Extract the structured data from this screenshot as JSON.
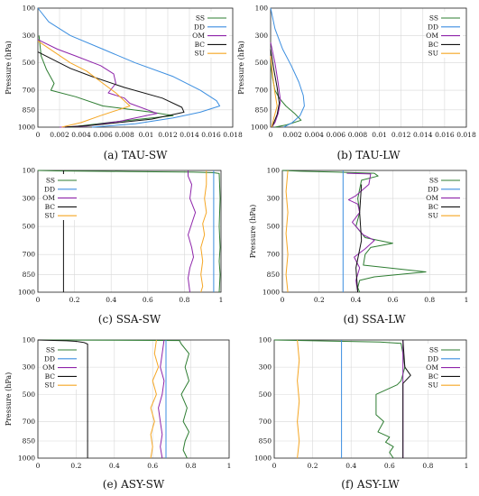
{
  "colors": {
    "SS": "#2e7d32",
    "DD": "#3b8ee0",
    "OM": "#8e24aa",
    "BC": "#111111",
    "SU": "#f5a623"
  },
  "legend_names": [
    "SS",
    "DD",
    "OM",
    "BC",
    "SU"
  ],
  "ylabel": "Pressure (hPa)",
  "y_ticks": [
    "100",
    "300",
    "500",
    "700",
    "850",
    "1000"
  ],
  "chart_data": [
    {
      "type": "line",
      "caption": "(a) TAU-SW",
      "ylabel": "Pressure (hPa)",
      "xlim": [
        0,
        0.018
      ],
      "x_ticks": [
        "0",
        "0.002",
        "0.004",
        "0.006",
        "0.008",
        "0.01",
        "0.012",
        "0.014",
        "0.016",
        "0.018"
      ],
      "y_ticks": [
        "100",
        "300",
        "500",
        "700",
        "850",
        "1000"
      ],
      "legend": "top-right",
      "series": [
        {
          "name": "SS",
          "x": [
            0.0001,
            0.0003,
            0.0008,
            0.0015,
            0.0012,
            0.0035,
            0.006,
            0.0105,
            0.0125,
            0.0065,
            0.003
          ],
          "y": [
            300,
            450,
            550,
            650,
            700,
            750,
            820,
            870,
            900,
            960,
            1000
          ]
        },
        {
          "name": "DD",
          "x": [
            0.0,
            0.001,
            0.003,
            0.006,
            0.009,
            0.0125,
            0.015,
            0.0165,
            0.0168,
            0.015,
            0.0125,
            0.009,
            0.005
          ],
          "y": [
            100,
            200,
            300,
            400,
            500,
            600,
            700,
            780,
            820,
            870,
            920,
            970,
            1000
          ]
        },
        {
          "name": "OM",
          "x": [
            0.0,
            0.0018,
            0.0035,
            0.0058,
            0.007,
            0.0072,
            0.0065,
            0.008,
            0.0085,
            0.011,
            0.0075,
            0.0045,
            0.002
          ],
          "y": [
            330,
            400,
            450,
            520,
            580,
            650,
            720,
            760,
            800,
            880,
            950,
            990,
            1000
          ]
        },
        {
          "name": "BC",
          "x": [
            0.0,
            0.0015,
            0.003,
            0.005,
            0.008,
            0.0115,
            0.0133,
            0.0135,
            0.0105,
            0.0055,
            0.0025
          ],
          "y": [
            420,
            480,
            540,
            600,
            680,
            760,
            830,
            870,
            930,
            980,
            1000
          ]
        },
        {
          "name": "SU",
          "x": [
            0.0,
            0.0015,
            0.003,
            0.0045,
            0.0055,
            0.0072,
            0.0085,
            0.0058,
            0.004,
            0.0022
          ],
          "y": [
            340,
            420,
            500,
            560,
            620,
            720,
            820,
            900,
            960,
            1000
          ]
        }
      ]
    },
    {
      "type": "line",
      "caption": "(b) TAU-LW",
      "ylabel": "Pressure (hPa)",
      "xlim": [
        0,
        0.018
      ],
      "x_ticks": [
        "0",
        "0.002",
        "0.004",
        "0.006",
        "0.008",
        "0.01",
        "0.012",
        "0.014",
        "0.016",
        "0.018"
      ],
      "y_ticks": [
        "100",
        "300",
        "500",
        "700",
        "850",
        "1000"
      ],
      "legend": "top-right",
      "series": [
        {
          "name": "SS",
          "x": [
            0.0,
            0.0002,
            0.0004,
            0.0008,
            0.0014,
            0.0022,
            0.0028,
            0.0015,
            0.0004
          ],
          "y": [
            500,
            620,
            700,
            760,
            820,
            880,
            940,
            980,
            1000
          ]
        },
        {
          "name": "DD",
          "x": [
            0.0,
            0.0004,
            0.0011,
            0.0019,
            0.0026,
            0.003,
            0.0031,
            0.0027,
            0.002,
            0.0012
          ],
          "y": [
            100,
            250,
            400,
            520,
            640,
            740,
            820,
            900,
            960,
            1000
          ]
        },
        {
          "name": "OM",
          "x": [
            0.0,
            0.0004,
            0.0007,
            0.0009,
            0.0007,
            0.0004,
            0.0001
          ],
          "y": [
            350,
            500,
            650,
            780,
            880,
            960,
            1000
          ]
        },
        {
          "name": "BC",
          "x": [
            0.0,
            0.0003,
            0.0006,
            0.0008,
            0.0006,
            0.0003,
            0.0001
          ],
          "y": [
            400,
            550,
            680,
            800,
            890,
            960,
            1000
          ]
        },
        {
          "name": "SU",
          "x": [
            0.0,
            0.0002,
            0.0004,
            0.0006,
            0.0003,
            0.0001
          ],
          "y": [
            450,
            600,
            720,
            820,
            920,
            1000
          ]
        }
      ]
    },
    {
      "type": "line",
      "caption": "(c) SSA-SW",
      "ylabel": "",
      "xlim": [
        0,
        1
      ],
      "x_ticks": [
        "0",
        "0.2",
        "0.4",
        "0.6",
        "0.8",
        "1"
      ],
      "y_ticks": [
        "100",
        "300",
        "500",
        "700",
        "850",
        "1000"
      ],
      "legend": "top-left",
      "series": [
        {
          "name": "SS",
          "x": [
            0.0,
            0.1,
            0.5,
            0.85,
            0.96,
            0.99,
            0.995,
            0.99,
            0.995,
            0.99,
            0.995,
            0.99
          ],
          "y": [
            100,
            103,
            108,
            112,
            116,
            122,
            300,
            500,
            650,
            750,
            850,
            1000
          ]
        },
        {
          "name": "DD",
          "x": [
            0.96,
            0.96
          ],
          "y": [
            100,
            1000
          ]
        },
        {
          "name": "OM",
          "x": [
            0.82,
            0.82,
            0.84,
            0.83,
            0.86,
            0.84,
            0.82,
            0.84,
            0.85,
            0.83,
            0.82,
            0.83
          ],
          "y": [
            100,
            140,
            200,
            300,
            400,
            480,
            560,
            650,
            720,
            800,
            880,
            1000
          ]
        },
        {
          "name": "BC",
          "x": [
            0.14,
            0.14
          ],
          "y": [
            100,
            1000
          ]
        },
        {
          "name": "SU",
          "x": [
            0.92,
            0.92,
            0.91,
            0.92,
            0.9,
            0.91,
            0.89,
            0.9,
            0.89,
            0.9,
            0.89
          ],
          "y": [
            100,
            200,
            300,
            400,
            480,
            560,
            650,
            750,
            850,
            950,
            1000
          ]
        }
      ]
    },
    {
      "type": "line",
      "caption": "(d) SSA-LW",
      "ylabel": "Pressure (hPa)",
      "xlim": [
        0,
        1
      ],
      "x_ticks": [
        "0",
        "0.2",
        "0.4",
        "0.6",
        "0.8",
        "1"
      ],
      "y_ticks": [
        "100",
        "300",
        "500",
        "700",
        "850",
        "1000"
      ],
      "legend": "top-right",
      "series": [
        {
          "name": "SS",
          "x": [
            0.0,
            0.1,
            0.3,
            0.5,
            0.52,
            0.43,
            0.41,
            0.42,
            0.4,
            0.45,
            0.6,
            0.48,
            0.45,
            0.44,
            0.78,
            0.5,
            0.42,
            0.41,
            0.42
          ],
          "y": [
            100,
            106,
            112,
            120,
            140,
            170,
            300,
            400,
            500,
            580,
            620,
            650,
            700,
            780,
            830,
            870,
            900,
            960,
            1000
          ]
        },
        {
          "name": "DD",
          "x": [
            0.33,
            0.33
          ],
          "y": [
            100,
            1000
          ]
        },
        {
          "name": "OM",
          "x": [
            0.35,
            0.48,
            0.47,
            0.4,
            0.36,
            0.41,
            0.42,
            0.38,
            0.44,
            0.5,
            0.45,
            0.39,
            0.42,
            0.4,
            0.41
          ],
          "y": [
            120,
            125,
            200,
            280,
            310,
            340,
            400,
            470,
            560,
            600,
            660,
            720,
            800,
            900,
            1000
          ]
        },
        {
          "name": "BC",
          "x": [
            0.43,
            0.42,
            0.43,
            0.4,
            0.41
          ],
          "y": [
            200,
            400,
            600,
            800,
            1000
          ]
        },
        {
          "name": "SU",
          "x": [
            0.03,
            0.02,
            0.03,
            0.02,
            0.03,
            0.02,
            0.03
          ],
          "y": [
            100,
            250,
            400,
            550,
            700,
            850,
            1000
          ]
        }
      ]
    },
    {
      "type": "line",
      "caption": "(e) ASY-SW",
      "ylabel": "Pressure (hPa)",
      "xlim": [
        0,
        1
      ],
      "x_ticks": [
        "0",
        "0.2",
        "0.4",
        "0.6",
        "0.8",
        "1"
      ],
      "y_ticks": [
        "100",
        "300",
        "500",
        "700",
        "850",
        "1000"
      ],
      "legend": "top-left",
      "series": [
        {
          "name": "SS",
          "x": [
            0.0,
            0.4,
            0.74,
            0.75,
            0.79,
            0.77,
            0.79,
            0.75,
            0.78,
            0.76,
            0.79,
            0.77,
            0.76,
            0.78
          ],
          "y": [
            100,
            102,
            104,
            130,
            200,
            300,
            400,
            500,
            600,
            700,
            780,
            850,
            930,
            1000
          ]
        },
        {
          "name": "DD",
          "x": [
            0.67,
            0.67
          ],
          "y": [
            100,
            1000
          ]
        },
        {
          "name": "OM",
          "x": [
            0.66,
            0.65,
            0.64,
            0.66,
            0.65,
            0.63,
            0.64,
            0.65,
            0.64,
            0.65
          ],
          "y": [
            100,
            200,
            300,
            400,
            500,
            600,
            700,
            800,
            900,
            1000
          ]
        },
        {
          "name": "BC",
          "x": [
            0.0,
            0.08,
            0.15,
            0.2,
            0.24,
            0.26,
            0.26
          ],
          "y": [
            100,
            103,
            106,
            110,
            118,
            130,
            1000
          ]
        },
        {
          "name": "SU",
          "x": [
            0.62,
            0.61,
            0.63,
            0.6,
            0.62,
            0.59,
            0.61,
            0.59,
            0.6,
            0.59
          ],
          "y": [
            100,
            200,
            300,
            400,
            500,
            600,
            700,
            800,
            900,
            1000
          ]
        }
      ]
    },
    {
      "type": "line",
      "caption": "(f) ASY-LW",
      "ylabel": "",
      "xlim": [
        0,
        1
      ],
      "x_ticks": [
        "0",
        "0.2",
        "0.4",
        "0.6",
        "0.8",
        "1"
      ],
      "y_ticks": [
        "100",
        "300",
        "500",
        "700",
        "850",
        "1000"
      ],
      "legend": "top-right",
      "series": [
        {
          "name": "SS",
          "x": [
            0.0,
            0.3,
            0.55,
            0.66,
            0.67,
            0.68,
            0.66,
            0.64,
            0.53,
            0.53,
            0.57,
            0.54,
            0.6,
            0.58,
            0.62,
            0.6,
            0.62
          ],
          "y": [
            100,
            108,
            115,
            125,
            200,
            300,
            400,
            430,
            500,
            650,
            700,
            780,
            820,
            860,
            900,
            950,
            1000
          ]
        },
        {
          "name": "DD",
          "x": [
            0.35,
            0.35
          ],
          "y": [
            100,
            1000
          ]
        },
        {
          "name": "OM",
          "x": [
            0.67,
            0.67
          ],
          "y": [
            100,
            1000
          ]
        },
        {
          "name": "BC",
          "x": [
            0.67,
            0.68,
            0.71,
            0.67,
            0.67
          ],
          "y": [
            100,
            300,
            360,
            420,
            1000
          ]
        },
        {
          "name": "SU",
          "x": [
            0.12,
            0.13,
            0.12,
            0.13,
            0.12,
            0.13,
            0.12
          ],
          "y": [
            100,
            250,
            400,
            550,
            700,
            850,
            1000
          ]
        }
      ]
    }
  ]
}
